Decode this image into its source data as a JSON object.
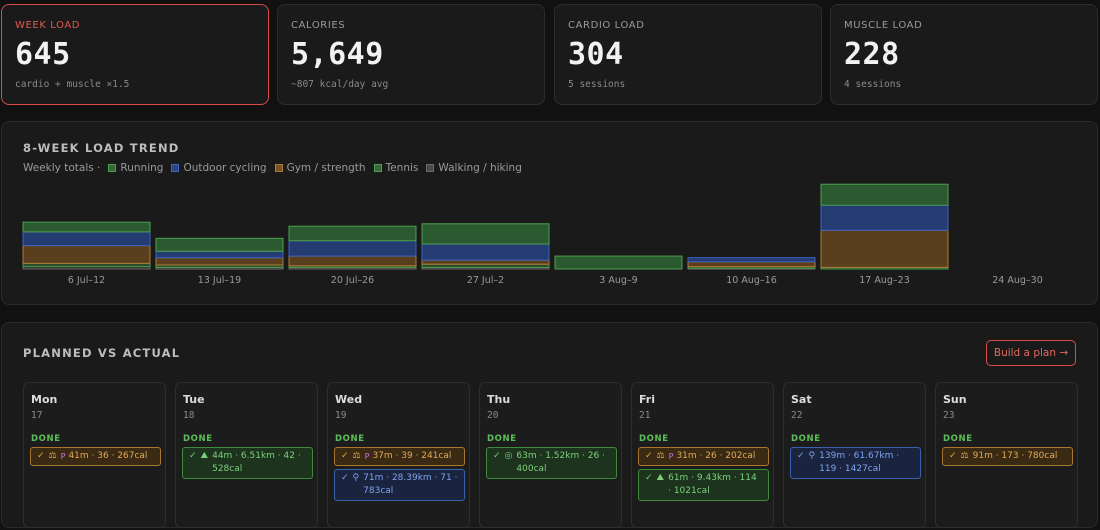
{
  "kpis": [
    {
      "label": "WEEK LOAD",
      "value": "645",
      "sub": "cardio + muscle ×1.5"
    },
    {
      "label": "CALORIES",
      "value": "5,649",
      "sub": "~807 kcal/day avg"
    },
    {
      "label": "CARDIO LOAD",
      "value": "304",
      "sub": "5 sessions"
    },
    {
      "label": "MUSCLE LOAD",
      "value": "228",
      "sub": "4 sessions"
    }
  ],
  "trend": {
    "title": "8-WEEK LOAD TREND",
    "legend_prefix": "Weekly totals ·",
    "legend": [
      {
        "name": "Running",
        "color": "#4a9e4a"
      },
      {
        "name": "Outdoor cycling",
        "color": "#3a63c4"
      },
      {
        "name": "Gym / strength",
        "color": "#b07a35"
      },
      {
        "name": "Tennis",
        "color": "#4f9e4f"
      },
      {
        "name": "Walking / hiking",
        "color": "#6a6a6a"
      }
    ]
  },
  "chart_data": {
    "type": "bar",
    "stacked": true,
    "categories": [
      "6 Jul–12",
      "13 Jul–19",
      "20 Jul–26",
      "27 Jul–2",
      "3 Aug–9",
      "10 Aug–16",
      "17 Aug–23",
      "24 Aug–30"
    ],
    "series": [
      {
        "name": "Walking / hiking",
        "color": "#6a6a6a",
        "values": [
          15,
          10,
          10,
          10,
          0,
          5,
          0,
          0
        ]
      },
      {
        "name": "Running",
        "color": "#4a9e4a",
        "values": [
          20,
          15,
          10,
          20,
          0,
          10,
          10,
          0
        ]
      },
      {
        "name": "Gym / strength",
        "color": "#b07a35",
        "values": [
          110,
          45,
          60,
          25,
          0,
          30,
          230,
          0
        ]
      },
      {
        "name": "Outdoor cycling",
        "color": "#3a63c4",
        "values": [
          85,
          40,
          95,
          100,
          0,
          25,
          155,
          0
        ]
      },
      {
        "name": "Tennis",
        "color": "#4f9e4f",
        "values": [
          60,
          80,
          90,
          125,
          80,
          0,
          130,
          0
        ]
      }
    ],
    "ylim": [
      0,
      545
    ],
    "grid": false,
    "legend_position": "top-left"
  },
  "planned": {
    "title": "PLANNED VS ACTUAL",
    "build_button": "Build a plan →",
    "days": [
      {
        "name": "Mon",
        "date": "17",
        "status": "DONE",
        "activities": [
          {
            "color": "orange",
            "icon": "dumbbell-icon",
            "glyph": "⚖",
            "badge": "P",
            "text": "41m · 36 · 267cal"
          }
        ]
      },
      {
        "name": "Tue",
        "date": "18",
        "status": "DONE",
        "activities": [
          {
            "color": "green",
            "icon": "hiking-icon",
            "glyph": "⛰",
            "badge": "",
            "text": "44m · 6.51km · 42 · 528cal"
          }
        ]
      },
      {
        "name": "Wed",
        "date": "19",
        "status": "DONE",
        "activities": [
          {
            "color": "orange",
            "icon": "dumbbell-icon",
            "glyph": "⚖",
            "badge": "P",
            "text": "37m · 39 · 241cal"
          },
          {
            "color": "blue",
            "icon": "bike-icon",
            "glyph": "⚲",
            "badge": "",
            "text": "71m · 28.39km · 71 · 783cal"
          }
        ]
      },
      {
        "name": "Thu",
        "date": "20",
        "status": "DONE",
        "activities": [
          {
            "color": "green",
            "icon": "tennis-icon",
            "glyph": "◎",
            "badge": "",
            "text": "63m · 1.52km · 26 · 400cal"
          }
        ]
      },
      {
        "name": "Fri",
        "date": "21",
        "status": "DONE",
        "activities": [
          {
            "color": "orange",
            "icon": "dumbbell-icon",
            "glyph": "⚖",
            "badge": "P",
            "text": "31m · 26 · 202cal"
          },
          {
            "color": "green",
            "icon": "hiking-icon",
            "glyph": "⛰",
            "badge": "",
            "text": "61m · 9.43km · 114 · 1021cal"
          }
        ]
      },
      {
        "name": "Sat",
        "date": "22",
        "status": "DONE",
        "activities": [
          {
            "color": "blue",
            "icon": "bike-icon",
            "glyph": "⚲",
            "badge": "",
            "text": "139m · 61.67km · 119 · 1427cal"
          }
        ]
      },
      {
        "name": "Sun",
        "date": "23",
        "status": "DONE",
        "activities": [
          {
            "color": "orange",
            "icon": "dumbbell-icon",
            "glyph": "⚖",
            "badge": "",
            "text": "91m · 173 · 780cal"
          }
        ]
      }
    ]
  }
}
